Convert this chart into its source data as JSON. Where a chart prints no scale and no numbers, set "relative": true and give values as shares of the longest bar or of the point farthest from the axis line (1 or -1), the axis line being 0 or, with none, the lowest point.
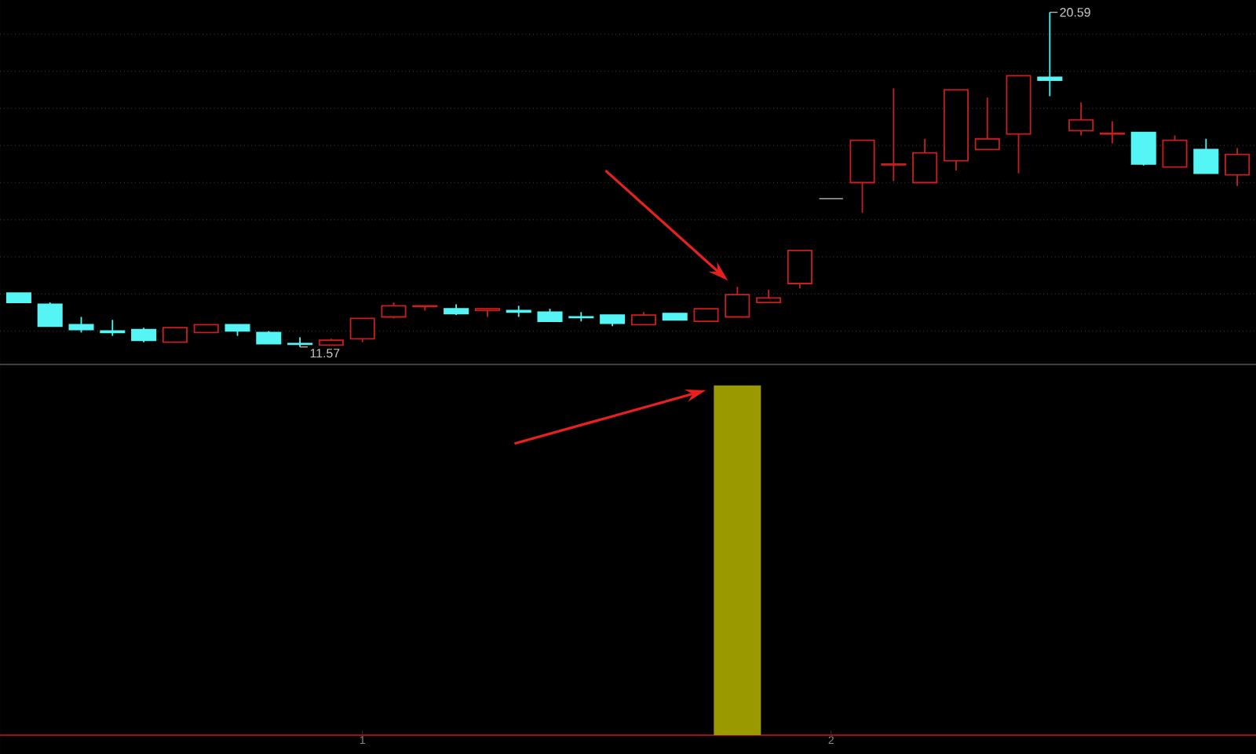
{
  "chart_data": [
    {
      "type": "candlestick",
      "categories": [
        null,
        null,
        null,
        null,
        null,
        null,
        null,
        null,
        null,
        null,
        null,
        null,
        null,
        null,
        null,
        null,
        null,
        null,
        null,
        null,
        null,
        null,
        null,
        null,
        null,
        null,
        null,
        null,
        null,
        null,
        null,
        null,
        null,
        null,
        null,
        null,
        null,
        null,
        null,
        null
      ],
      "ohlc": [
        [
          13.02,
          13.02,
          12.77,
          12.77
        ],
        [
          12.72,
          12.77,
          12.13,
          12.13
        ],
        [
          12.17,
          12.38,
          11.96,
          12.04
        ],
        [
          12.0,
          12.3,
          11.87,
          11.96
        ],
        [
          12.04,
          12.09,
          11.7,
          11.75
        ],
        [
          11.7,
          12.09,
          11.7,
          12.09
        ],
        [
          11.96,
          12.17,
          11.96,
          12.17
        ],
        [
          12.17,
          12.17,
          11.87,
          12.0
        ],
        [
          11.96,
          12.0,
          11.66,
          11.66
        ],
        [
          11.66,
          11.83,
          11.57,
          11.64
        ],
        [
          11.62,
          11.79,
          11.62,
          11.75
        ],
        [
          11.79,
          12.34,
          11.7,
          12.34
        ],
        [
          12.38,
          12.77,
          12.34,
          12.68
        ],
        [
          12.66,
          12.68,
          12.55,
          12.68
        ],
        [
          12.6,
          12.72,
          12.43,
          12.47
        ],
        [
          12.55,
          12.6,
          12.38,
          12.6
        ],
        [
          12.55,
          12.68,
          12.38,
          12.51
        ],
        [
          12.51,
          12.6,
          12.26,
          12.26
        ],
        [
          12.38,
          12.51,
          12.26,
          12.36
        ],
        [
          12.43,
          12.43,
          12.13,
          12.21
        ],
        [
          12.17,
          12.51,
          12.17,
          12.43
        ],
        [
          12.47,
          12.47,
          12.3,
          12.3
        ],
        [
          12.26,
          12.6,
          12.26,
          12.6
        ],
        [
          12.38,
          13.19,
          12.38,
          12.98
        ],
        [
          12.77,
          13.11,
          12.77,
          12.89
        ],
        [
          13.28,
          14.17,
          13.15,
          14.17
        ],
        [
          15.57,
          15.57,
          15.57,
          15.57
        ],
        [
          16.0,
          17.14,
          15.19,
          17.14
        ],
        [
          16.48,
          18.54,
          16.04,
          16.5
        ],
        [
          16.0,
          17.18,
          16.0,
          16.8
        ],
        [
          16.59,
          18.5,
          16.33,
          18.5
        ],
        [
          16.89,
          18.29,
          16.89,
          17.18
        ],
        [
          17.31,
          18.88,
          16.25,
          18.88
        ],
        [
          18.84,
          20.59,
          18.33,
          18.76
        ],
        [
          17.4,
          18.16,
          17.27,
          17.69
        ],
        [
          17.31,
          17.65,
          17.06,
          17.33
        ],
        [
          17.35,
          17.35,
          16.46,
          16.5
        ],
        [
          16.42,
          17.27,
          16.42,
          17.14
        ],
        [
          16.89,
          17.18,
          16.25,
          16.25
        ],
        [
          16.21,
          16.93,
          15.91,
          16.76
        ]
      ],
      "colors": [
        "#55f5f5",
        "#55f5f5",
        "#55f5f5",
        "#55f5f5",
        "#55f5f5",
        "#c82020",
        "#c82020",
        "#55f5f5",
        "#55f5f5",
        "#55f5f5",
        "#c82020",
        "#c82020",
        "#c82020",
        "#c82020",
        "#55f5f5",
        "#c82020",
        "#55f5f5",
        "#55f5f5",
        "#55f5f5",
        "#55f5f5",
        "#c82020",
        "#55f5f5",
        "#c82020",
        "#c82020",
        "#c82020",
        "#c82020",
        "#909090",
        "#c82020",
        "#c82020",
        "#c82020",
        "#c82020",
        "#c82020",
        "#c82020",
        "#55f5f5",
        "#c82020",
        "#c82020",
        "#55f5f5",
        "#c82020",
        "#55f5f5",
        "#c82020"
      ],
      "yticks": [
        {
          "value": 12,
          "label": null
        },
        {
          "value": 13,
          "label": null
        },
        {
          "value": 14,
          "label": null
        },
        {
          "value": 15,
          "label": null
        },
        {
          "value": 16,
          "label": null
        },
        {
          "value": 17,
          "label": null
        },
        {
          "value": 18,
          "label": null
        },
        {
          "value": 19,
          "label": null
        },
        {
          "value": 20,
          "label": null
        }
      ],
      "grid": "y",
      "tick_labels": false,
      "annotations": [
        "20.59",
        "11.57"
      ]
    },
    {
      "type": "bar",
      "categories": [
        null,
        null,
        null,
        null,
        null,
        null,
        null,
        null,
        null,
        null,
        null,
        "1",
        null,
        null,
        null,
        null,
        null,
        null,
        null,
        null,
        null,
        null,
        null,
        null,
        null,
        null,
        "2",
        null,
        null,
        null,
        null,
        null,
        null,
        null,
        null,
        null,
        null,
        null,
        null,
        null
      ],
      "values": [
        null,
        null,
        null,
        null,
        null,
        null,
        null,
        null,
        null,
        null,
        null,
        null,
        null,
        null,
        null,
        null,
        null,
        null,
        null,
        null,
        null,
        null,
        null,
        1,
        null,
        null,
        null,
        null,
        null,
        null,
        null,
        null,
        null,
        null,
        null,
        null,
        null,
        null,
        null,
        null
      ],
      "color": "#9a9a00",
      "relative": true,
      "tick_labels": "x"
    }
  ]
}
